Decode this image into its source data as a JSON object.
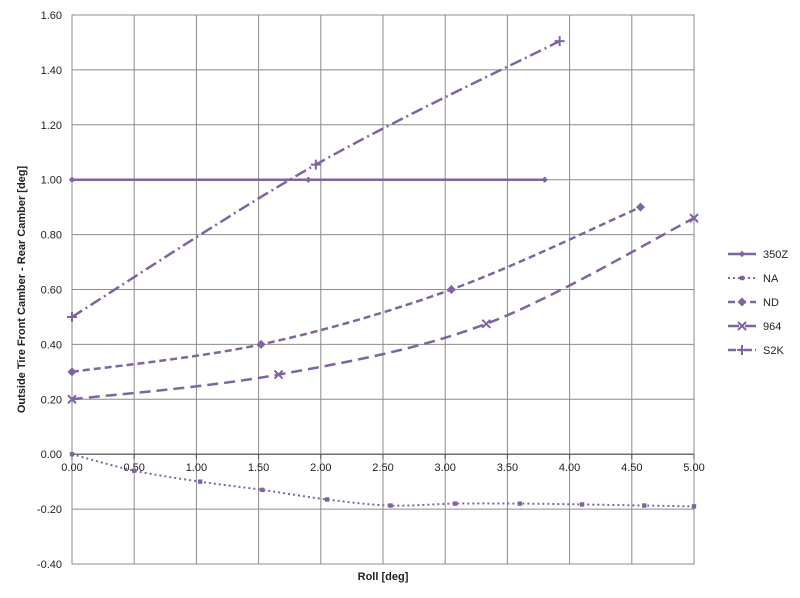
{
  "chart_data": {
    "type": "line",
    "title": "",
    "xlabel": "Roll [deg]",
    "ylabel": "Outside Tire Front Camber - Rear Camber [deg]",
    "xlim": [
      0,
      5
    ],
    "ylim": [
      -0.4,
      1.6
    ],
    "x_ticks": [
      "0.00",
      "0.50",
      "1.00",
      "1.50",
      "2.00",
      "2.50",
      "3.00",
      "3.50",
      "4.00",
      "4.50",
      "5.00"
    ],
    "y_ticks": [
      "-0.40",
      "-0.20",
      "0.00",
      "0.20",
      "0.40",
      "0.60",
      "0.80",
      "1.00",
      "1.20",
      "1.40",
      "1.60"
    ],
    "grid": true,
    "legend_position": "right",
    "color": "#8064a2",
    "series": [
      {
        "name": "350Z",
        "style": "solid",
        "marker": "diamond-small",
        "points": [
          [
            0.0,
            1.0
          ],
          [
            1.9,
            1.0
          ],
          [
            3.8,
            1.0
          ]
        ]
      },
      {
        "name": "NA",
        "style": "dotted",
        "marker": "square-small",
        "points": [
          [
            0.0,
            0.0
          ],
          [
            0.5,
            -0.06
          ],
          [
            1.03,
            -0.1
          ],
          [
            1.53,
            -0.13
          ],
          [
            2.05,
            -0.165
          ],
          [
            2.56,
            -0.187
          ],
          [
            3.08,
            -0.18
          ],
          [
            3.6,
            -0.18
          ],
          [
            4.1,
            -0.183
          ],
          [
            4.6,
            -0.187
          ],
          [
            5.0,
            -0.19
          ]
        ]
      },
      {
        "name": "ND",
        "style": "dashed",
        "marker": "diamond",
        "points": [
          [
            0.0,
            0.3
          ],
          [
            1.52,
            0.4
          ],
          [
            3.05,
            0.6
          ],
          [
            4.57,
            0.9
          ]
        ]
      },
      {
        "name": "964",
        "style": "long-dash",
        "marker": "x",
        "points": [
          [
            0.0,
            0.2
          ],
          [
            1.66,
            0.29
          ],
          [
            3.33,
            0.475
          ],
          [
            5.0,
            0.86
          ]
        ]
      },
      {
        "name": "S2K",
        "style": "dash-dot",
        "marker": "plus",
        "points": [
          [
            0.0,
            0.5
          ],
          [
            1.96,
            1.055
          ],
          [
            3.92,
            1.505
          ]
        ]
      }
    ]
  }
}
